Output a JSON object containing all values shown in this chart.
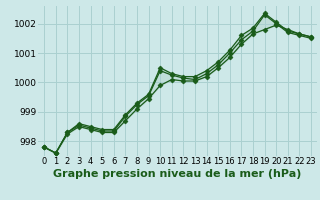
{
  "xlabel": "Graphe pression niveau de la mer (hPa)",
  "hours": [
    0,
    1,
    2,
    3,
    4,
    5,
    6,
    7,
    8,
    9,
    10,
    11,
    12,
    13,
    14,
    15,
    16,
    17,
    18,
    19,
    20,
    21,
    22,
    23
  ],
  "line_top": [
    997.8,
    997.6,
    998.3,
    998.6,
    998.5,
    998.4,
    998.4,
    998.9,
    999.3,
    999.6,
    1000.5,
    1000.3,
    1000.2,
    1000.2,
    1000.4,
    1000.7,
    1001.1,
    1001.6,
    1001.85,
    1002.35,
    1002.05,
    1001.75,
    1001.65,
    1001.55
  ],
  "line_mid": [
    997.8,
    997.6,
    998.3,
    998.55,
    998.45,
    998.35,
    998.35,
    998.85,
    999.25,
    999.55,
    1000.4,
    1000.25,
    1000.15,
    1000.1,
    1000.3,
    1000.6,
    1001.0,
    1001.45,
    1001.75,
    1002.3,
    1002.0,
    1001.7,
    1001.6,
    1001.5
  ],
  "line_bot": [
    997.8,
    997.6,
    998.25,
    998.5,
    998.4,
    998.3,
    998.3,
    998.7,
    999.1,
    999.45,
    999.9,
    1000.1,
    1000.05,
    1000.05,
    1000.2,
    1000.5,
    1000.85,
    1001.3,
    1001.65,
    1001.8,
    1001.95,
    1001.8,
    1001.65,
    1001.55
  ],
  "ylim": [
    997.5,
    1002.6
  ],
  "yticks": [
    998,
    999,
    1000,
    1001,
    1002
  ],
  "bg_color": "#cde8e8",
  "grid_color": "#aad0d0",
  "line_color": "#1a5c1a",
  "marker": "D",
  "markersize": 2.5,
  "linewidth": 0.9,
  "xlabel_fontsize": 8,
  "tick_fontsize": 6.5
}
